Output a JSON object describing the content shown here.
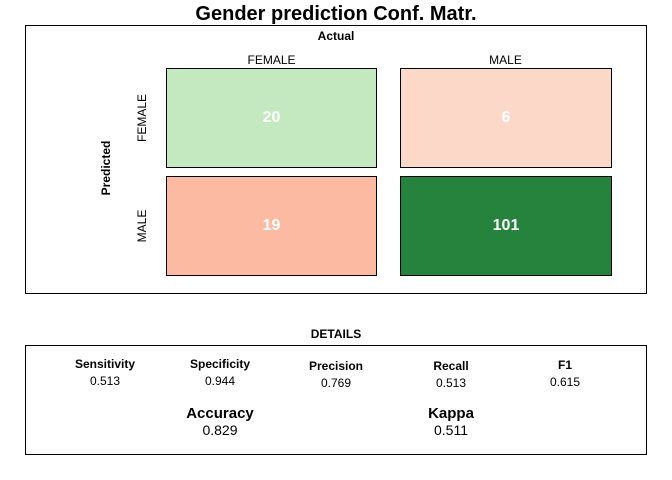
{
  "chart_data": [
    {
      "type": "heatmap",
      "title": "Gender prediction Conf. Matr.",
      "xlabel": "Actual",
      "ylabel": "Predicted",
      "columns": [
        "FEMALE",
        "MALE"
      ],
      "rows": [
        "FEMALE",
        "MALE"
      ],
      "values": [
        [
          20,
          6
        ],
        [
          19,
          101
        ]
      ],
      "colors": [
        [
          "#c4e8c0",
          "#fbd8c8"
        ],
        [
          "#fbbaa1",
          "#25833e"
        ]
      ]
    },
    {
      "type": "table",
      "title": "DETAILS",
      "metrics": [
        {
          "name": "Sensitivity",
          "value": "0.513"
        },
        {
          "name": "Specificity",
          "value": "0.944"
        },
        {
          "name": "Precision",
          "value": "0.769"
        },
        {
          "name": "Recall",
          "value": "0.513"
        },
        {
          "name": "F1",
          "value": "0.615"
        }
      ],
      "summary": [
        {
          "name": "Accuracy",
          "value": "0.829"
        },
        {
          "name": "Kappa",
          "value": "0.511"
        }
      ]
    }
  ]
}
